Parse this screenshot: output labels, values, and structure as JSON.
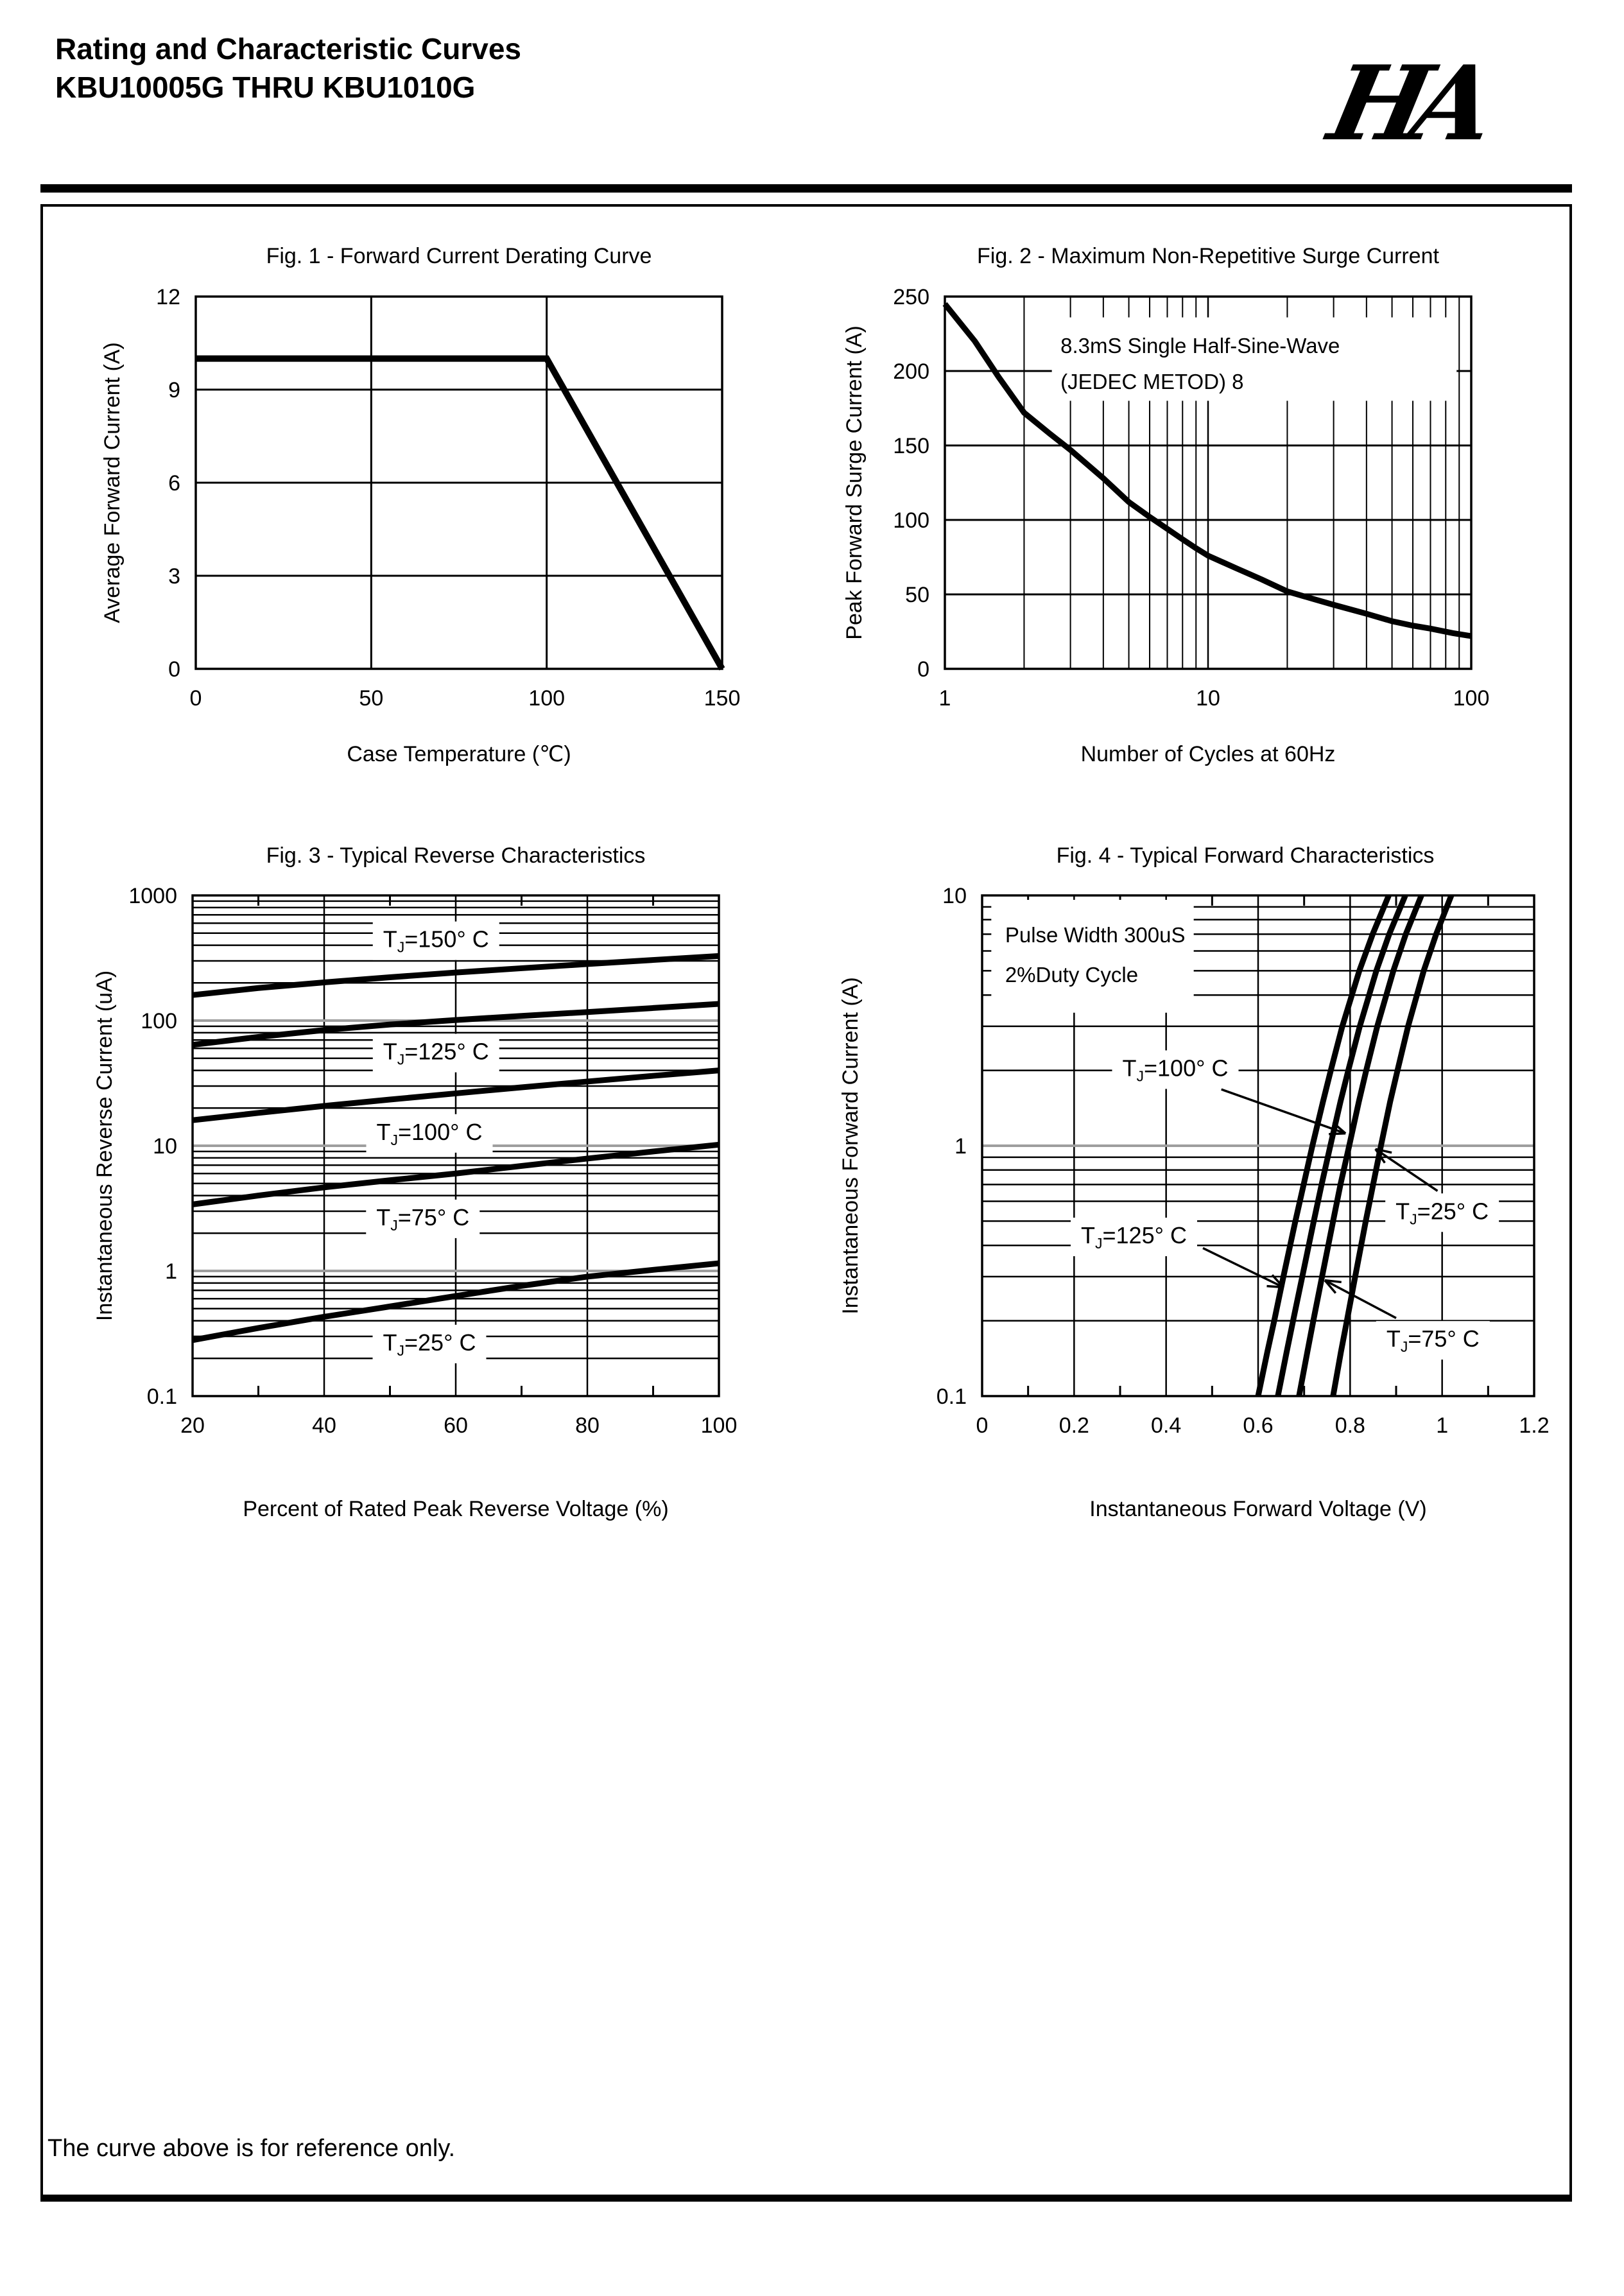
{
  "page": {
    "header": {
      "title_line1": "Rating and Characteristic Curves",
      "title_line2": "KBU10005G THRU KBU1010G",
      "logo_text": "HA"
    },
    "footer_note": "The curve above is for reference only."
  },
  "colors": {
    "ink": "#000000",
    "gray_gridline": "#9e9e9e",
    "paper": "#ffffff"
  },
  "chart_data": [
    {
      "id": "fig1",
      "type": "line",
      "title": "Fig. 1 - Forward Current Derating Curve",
      "xlabel": "Case Temperature (℃)",
      "ylabel": "Average Forward Current (A)",
      "x": {
        "scale": "linear",
        "min": 0,
        "max": 150,
        "ticks": [
          [
            0,
            "0"
          ],
          [
            50,
            "50"
          ],
          [
            100,
            "100"
          ],
          [
            150,
            "150"
          ]
        ],
        "grid": [
          50,
          100
        ]
      },
      "y": {
        "scale": "linear",
        "min": 0,
        "max": 12,
        "ticks": [
          [
            0,
            "0"
          ],
          [
            3,
            "3"
          ],
          [
            6,
            "6"
          ],
          [
            9,
            "9"
          ],
          [
            12,
            "12"
          ]
        ],
        "grid": [
          3,
          6,
          9
        ]
      },
      "series": [
        {
          "name": "derating",
          "points": [
            [
              0,
              10
            ],
            [
              100,
              10
            ],
            [
              150,
              0
            ]
          ]
        }
      ]
    },
    {
      "id": "fig2",
      "type": "line",
      "title": "Fig. 2 - Maximum Non-Repetitive Surge Current",
      "xlabel": "Number of Cycles at 60Hz",
      "ylabel": "Peak Forward Surge Current (A)",
      "x": {
        "scale": "log",
        "min": 1,
        "max": 100,
        "ticks": [
          [
            1,
            "1"
          ],
          [
            10,
            "10"
          ],
          [
            100,
            "100"
          ]
        ],
        "grid": [
          10
        ]
      },
      "y": {
        "scale": "linear",
        "min": 0,
        "max": 250,
        "ticks": [
          [
            0,
            "0"
          ],
          [
            50,
            "50"
          ],
          [
            100,
            "100"
          ],
          [
            150,
            "150"
          ],
          [
            200,
            "200"
          ],
          [
            250,
            "250"
          ]
        ],
        "grid": [
          50,
          100,
          150,
          200
        ]
      },
      "annotation": {
        "lines": [
          "8.3mS Single Half-Sine-Wave",
          "(JEDEC METOD)  8"
        ],
        "x": 2.75,
        "y": 212,
        "line_gap": 56,
        "bg": {
          "x1": 2.55,
          "x2": 88,
          "y1": 180,
          "y2": 236
        }
      },
      "series": [
        {
          "name": "surge",
          "points": [
            [
              1,
              245
            ],
            [
              1.3,
              220
            ],
            [
              1.6,
              196
            ],
            [
              2,
              172
            ],
            [
              2.5,
              158
            ],
            [
              3,
              147
            ],
            [
              4,
              128
            ],
            [
              5,
              112
            ],
            [
              6,
              102
            ],
            [
              7,
              94
            ],
            [
              8,
              87
            ],
            [
              9,
              81
            ],
            [
              10,
              76
            ],
            [
              13,
              67
            ],
            [
              16,
              60
            ],
            [
              20,
              52
            ],
            [
              25,
              47
            ],
            [
              30,
              43
            ],
            [
              40,
              37
            ],
            [
              50,
              32
            ],
            [
              60,
              29
            ],
            [
              70,
              27
            ],
            [
              85,
              24
            ],
            [
              100,
              22
            ]
          ]
        }
      ]
    },
    {
      "id": "fig3",
      "type": "line",
      "title": "Fig. 3 - Typical Reverse Characteristics",
      "xlabel": "Percent of Rated Peak Reverse Voltage (%)",
      "ylabel": "Instantaneous Reverse Current (uA)",
      "x": {
        "scale": "linear",
        "min": 20,
        "max": 100,
        "ticks": [
          [
            20,
            "20"
          ],
          [
            40,
            "40"
          ],
          [
            60,
            "60"
          ],
          [
            80,
            "80"
          ],
          [
            100,
            "100"
          ]
        ],
        "grid": [
          40,
          60,
          80
        ],
        "minor_ticks": [
          30,
          50,
          70,
          90
        ]
      },
      "y": {
        "scale": "log",
        "min": 0.1,
        "max": 1000,
        "ticks": [
          [
            0.1,
            "0.1"
          ],
          [
            1,
            "1"
          ],
          [
            10,
            "10"
          ],
          [
            100,
            "100"
          ],
          [
            1000,
            "1000"
          ]
        ],
        "gray_grid": [
          1,
          10,
          100
        ]
      },
      "labels": [
        {
          "text": "TJ=150° C",
          "x": 57,
          "y": 450
        },
        {
          "text": "TJ=125° C",
          "x": 57,
          "y": 57
        },
        {
          "text": "TJ=100° C",
          "x": 56,
          "y": 13
        },
        {
          "text": "TJ=75° C",
          "x": 55,
          "y": 2.7
        },
        {
          "text": "TJ=25° C",
          "x": 56,
          "y": 0.27
        }
      ],
      "series": [
        {
          "name": "TJ150",
          "points": [
            [
              20,
              160
            ],
            [
              30,
              182
            ],
            [
              40,
              202
            ],
            [
              50,
              222
            ],
            [
              60,
              242
            ],
            [
              70,
              262
            ],
            [
              80,
              283
            ],
            [
              90,
              305
            ],
            [
              100,
              328
            ]
          ]
        },
        {
          "name": "TJ125",
          "points": [
            [
              20,
              64
            ],
            [
              30,
              74
            ],
            [
              40,
              84
            ],
            [
              50,
              93
            ],
            [
              60,
              101
            ],
            [
              70,
              109
            ],
            [
              80,
              117
            ],
            [
              90,
              126
            ],
            [
              100,
              136
            ]
          ]
        },
        {
          "name": "TJ100",
          "points": [
            [
              20,
              16
            ],
            [
              30,
              18.3
            ],
            [
              40,
              20.8
            ],
            [
              50,
              23.4
            ],
            [
              60,
              26.2
            ],
            [
              70,
              29.3
            ],
            [
              80,
              32.6
            ],
            [
              90,
              36.2
            ],
            [
              100,
              40
            ]
          ]
        },
        {
          "name": "TJ75",
          "points": [
            [
              20,
              3.4
            ],
            [
              30,
              4.0
            ],
            [
              40,
              4.65
            ],
            [
              50,
              5.3
            ],
            [
              60,
              6.0
            ],
            [
              70,
              6.9
            ],
            [
              80,
              7.9
            ],
            [
              90,
              9.0
            ],
            [
              100,
              10.2
            ]
          ]
        },
        {
          "name": "TJ25",
          "points": [
            [
              20,
              0.28
            ],
            [
              30,
              0.35
            ],
            [
              40,
              0.43
            ],
            [
              50,
              0.52
            ],
            [
              60,
              0.63
            ],
            [
              70,
              0.76
            ],
            [
              80,
              0.9
            ],
            [
              90,
              1.02
            ],
            [
              100,
              1.15
            ]
          ]
        }
      ]
    },
    {
      "id": "fig4",
      "type": "line",
      "title": "Fig. 4 - Typical Forward Characteristics",
      "xlabel": "Instantaneous Forward Voltage (V)",
      "ylabel": "Instantaneous Forward Current (A)",
      "x": {
        "scale": "linear",
        "min": 0,
        "max": 1.2,
        "ticks": [
          [
            0,
            "0"
          ],
          [
            0.2,
            "0.2"
          ],
          [
            0.4,
            "0.4"
          ],
          [
            0.6,
            "0.6"
          ],
          [
            0.8,
            "0.8"
          ],
          [
            1,
            "1"
          ],
          [
            1.2,
            "1.2"
          ]
        ],
        "grid": [
          0.2,
          0.4,
          0.6,
          0.8,
          1.0
        ],
        "minor_ticks": [
          0.1,
          0.3,
          0.5,
          0.7,
          0.9,
          1.1
        ]
      },
      "y": {
        "scale": "log",
        "min": 0.1,
        "max": 10,
        "ticks": [
          [
            0.1,
            "0.1"
          ],
          [
            1,
            "1"
          ],
          [
            10,
            "10"
          ]
        ],
        "gray_grid": [
          1
        ]
      },
      "annotation": {
        "lines": [
          "Pulse Width 300uS",
          "2%Duty Cycle"
        ],
        "x": 0.05,
        "y": 6.5,
        "line_gap": 62,
        "bg": {
          "x1": 0.02,
          "x2": 0.46,
          "y1": 3.4,
          "y2": 9.6
        }
      },
      "labels": [
        {
          "text": "TJ=100° C",
          "x": 0.42,
          "y": 2.05,
          "arrow": [
            0.52,
            1.68,
            0.79,
            1.12
          ]
        },
        {
          "text": "TJ=125° C",
          "x": 0.33,
          "y": 0.44,
          "arrow": [
            0.48,
            0.39,
            0.655,
            0.272
          ]
        },
        {
          "text": "TJ=25° C",
          "x": 1.0,
          "y": 0.55,
          "arrow": [
            0.99,
            0.66,
            0.855,
            0.97
          ]
        },
        {
          "text": "TJ=75° C",
          "x": 0.98,
          "y": 0.17,
          "arrow": [
            0.9,
            0.205,
            0.745,
            0.29
          ]
        }
      ],
      "series": [
        {
          "name": "TJ125",
          "points": [
            [
              0.6,
              0.1
            ],
            [
              0.62,
              0.15
            ],
            [
              0.635,
              0.2
            ],
            [
              0.655,
              0.3
            ],
            [
              0.681,
              0.5
            ],
            [
              0.699,
              0.7
            ],
            [
              0.718,
              1
            ],
            [
              0.741,
              1.5
            ],
            [
              0.758,
              2
            ],
            [
              0.783,
              3
            ],
            [
              0.82,
              5
            ],
            [
              0.849,
              7
            ],
            [
              0.884,
              10
            ]
          ]
        },
        {
          "name": "TJ100",
          "points": [
            [
              0.643,
              0.1
            ],
            [
              0.662,
              0.15
            ],
            [
              0.676,
              0.2
            ],
            [
              0.696,
              0.3
            ],
            [
              0.721,
              0.5
            ],
            [
              0.738,
              0.7
            ],
            [
              0.757,
              1
            ],
            [
              0.779,
              1.5
            ],
            [
              0.796,
              2
            ],
            [
              0.821,
              3
            ],
            [
              0.857,
              5
            ],
            [
              0.885,
              7
            ],
            [
              0.92,
              10
            ]
          ]
        },
        {
          "name": "TJ75",
          "points": [
            [
              0.689,
              0.1
            ],
            [
              0.707,
              0.15
            ],
            [
              0.72,
              0.2
            ],
            [
              0.739,
              0.3
            ],
            [
              0.763,
              0.5
            ],
            [
              0.779,
              0.7
            ],
            [
              0.798,
              1
            ],
            [
              0.819,
              1.5
            ],
            [
              0.835,
              2
            ],
            [
              0.859,
              3
            ],
            [
              0.894,
              5
            ],
            [
              0.921,
              7
            ],
            [
              0.955,
              10
            ]
          ]
        },
        {
          "name": "TJ25",
          "points": [
            [
              0.763,
              0.1
            ],
            [
              0.78,
              0.15
            ],
            [
              0.793,
              0.2
            ],
            [
              0.811,
              0.3
            ],
            [
              0.834,
              0.5
            ],
            [
              0.85,
              0.7
            ],
            [
              0.867,
              1
            ],
            [
              0.887,
              1.5
            ],
            [
              0.903,
              2
            ],
            [
              0.926,
              3
            ],
            [
              0.96,
              5
            ],
            [
              0.987,
              7
            ],
            [
              1.02,
              10
            ]
          ]
        }
      ]
    }
  ]
}
